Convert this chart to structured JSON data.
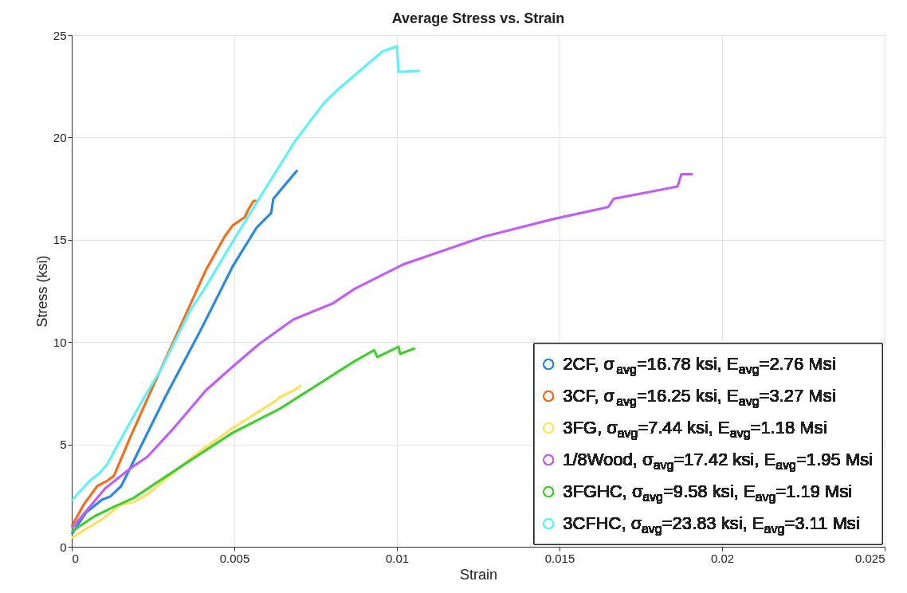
{
  "chart_data": {
    "type": "line",
    "title": "Average Stress vs. Strain",
    "xlabel": "Strain",
    "ylabel": "Stress (ksi)",
    "xlim": [
      0,
      0.025
    ],
    "ylim": [
      0,
      25
    ],
    "xticks": [
      0,
      0.005,
      0.01,
      0.015,
      0.02,
      0.025
    ],
    "yticks": [
      0,
      5,
      10,
      15,
      20,
      25
    ],
    "grid": true,
    "legend": "bottom right",
    "marker": "none",
    "line_style": "solid",
    "series": [
      {
        "name": "2CF, σ$_{avg}$=16.78 ksi, E$_{avg}$=2.76 Msi",
        "color": "#2b8ae0",
        "x": [
          0,
          0.00044,
          0.00093,
          0.00118,
          0.00152,
          0.002,
          0.00289,
          0.00397,
          0.00495,
          0.00569,
          0.00613,
          0.0062,
          0.00662,
          0.00694
        ],
        "values": [
          0.62,
          1.67,
          2.3,
          2.45,
          2.96,
          4.5,
          7.36,
          10.6,
          13.7,
          15.6,
          16.3,
          17.0,
          17.8,
          18.4
        ]
      },
      {
        "name": "3CF, σ$_{avg}$=16.25 ksi, E$_{avg}$=3.27 Msi",
        "color": "#f07020",
        "x": [
          0,
          0.00037,
          0.00078,
          0.0011,
          0.0013,
          0.00176,
          0.00233,
          0.003,
          0.00355,
          0.00412,
          0.0047,
          0.00495,
          0.00532,
          0.00544,
          0.00559,
          0.0057
        ],
        "values": [
          1.0,
          2.06,
          2.96,
          3.23,
          3.47,
          5.2,
          7.24,
          9.58,
          11.5,
          13.5,
          15.15,
          15.7,
          16.1,
          16.5,
          16.9,
          16.9
        ]
      },
      {
        "name": "3FG, σ$_{avg}$=7.44 ksi, E$_{avg}$=1.18 Msi",
        "color": "#ffe066",
        "x": [
          0,
          0.00098,
          0.00152,
          0.0019,
          0.00233,
          0.0038,
          0.00495,
          0.00625,
          0.0064,
          0.0069,
          0.00706
        ],
        "values": [
          0.43,
          1.4,
          2.06,
          2.18,
          2.57,
          4.5,
          5.8,
          7.1,
          7.3,
          7.7,
          7.9
        ]
      },
      {
        "name": "1/8Wood, σ$_{avg}$=17.42 ksi, E$_{avg}$=1.95 Msi",
        "color": "#c060f0",
        "x": [
          0,
          0.00103,
          0.00184,
          0.00233,
          0.00314,
          0.00412,
          0.00495,
          0.00576,
          0.00681,
          0.00804,
          0.0087,
          0.0102,
          0.01267,
          0.01478,
          0.0165,
          0.01667,
          0.01765,
          0.01863,
          0.01875,
          0.0191
        ],
        "values": [
          0.9,
          2.85,
          3.87,
          4.4,
          5.8,
          7.63,
          8.8,
          9.9,
          11.1,
          11.9,
          12.6,
          13.8,
          15.15,
          16.0,
          16.6,
          17.0,
          17.3,
          17.6,
          18.2,
          18.2
        ]
      },
      {
        "name": "3FGHC, σ$_{avg}$=9.58 ksi, E$_{avg}$=1.19 Msi",
        "color": "#44cc33",
        "x": [
          0,
          0.00069,
          0.00135,
          0.0019,
          0.0033,
          0.00495,
          0.0064,
          0.0087,
          0.0093,
          0.0094,
          0.01005,
          0.0101,
          0.01056
        ],
        "values": [
          0.74,
          1.48,
          1.99,
          2.38,
          3.86,
          5.57,
          6.74,
          9.07,
          9.6,
          9.27,
          9.77,
          9.42,
          9.7
        ]
      },
      {
        "name": "3CFHC, σ$_{avg}$=23.83 ksi, E$_{avg}$=3.11 Msi",
        "color": "#5ff0f8",
        "x": [
          0,
          0.00054,
          0.00086,
          0.0011,
          0.00142,
          0.00225,
          0.00275,
          0.00363,
          0.00412,
          0.00495,
          0.00576,
          0.00686,
          0.00777,
          0.00816,
          0.00882,
          0.00956,
          0.01,
          0.01005,
          0.0107
        ],
        "values": [
          2.26,
          3.2,
          3.6,
          4.05,
          5.0,
          7.36,
          8.68,
          11.5,
          12.7,
          14.9,
          17.0,
          19.8,
          21.7,
          22.3,
          23.2,
          24.2,
          24.45,
          23.2,
          23.25
        ]
      }
    ]
  }
}
